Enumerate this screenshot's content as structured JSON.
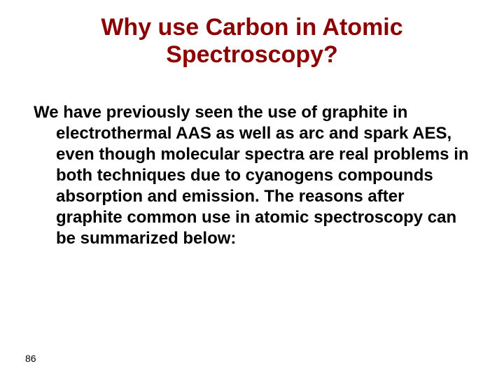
{
  "slide": {
    "title": "Why use Carbon in Atomic Spectroscopy?",
    "body": "We have previously seen the use of graphite in electrothermal AAS as well as arc and spark AES, even though molecular spectra are real problems in both techniques due to cyanogens compounds absorption and emission. The reasons after graphite common use in atomic spectroscopy can be summarized below:",
    "page_number": "86"
  },
  "styles": {
    "title_color": "#8b0000",
    "title_fontsize": 34,
    "body_color": "#000000",
    "body_fontsize": 24,
    "page_number_fontsize": 14,
    "background_color": "#ffffff",
    "font_family": "Arial"
  }
}
